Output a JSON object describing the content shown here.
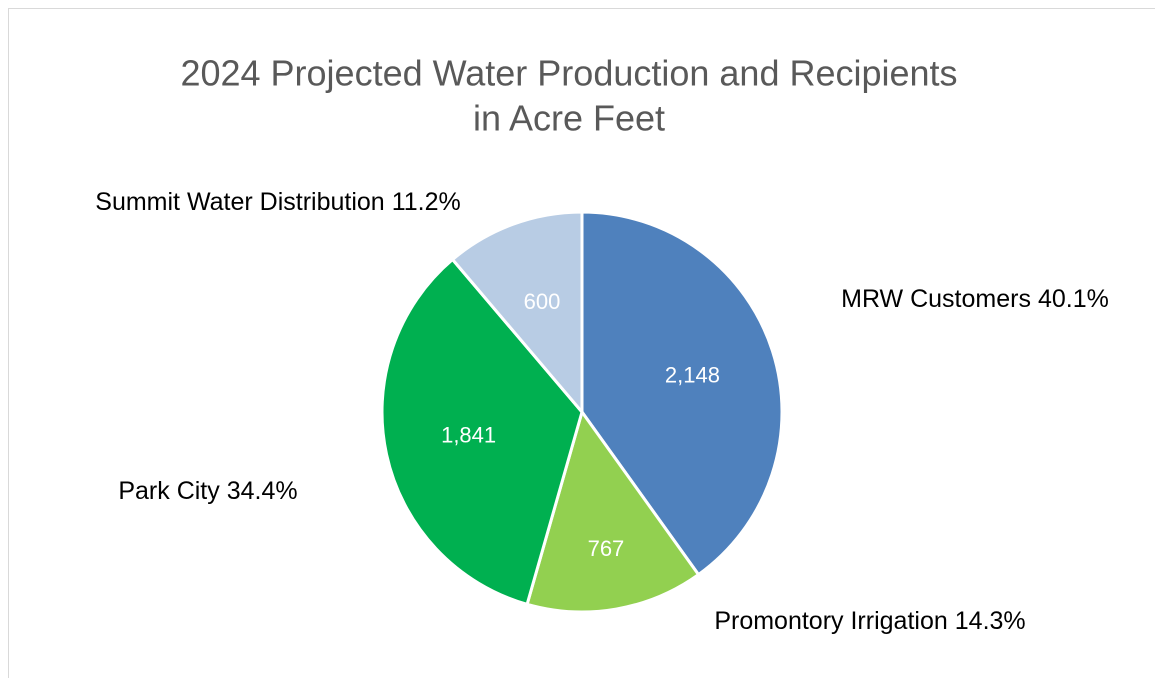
{
  "chart_data": {
    "type": "pie",
    "title": "2024 Projected Water Production and Recipients",
    "subtitle": "in Acre Feet",
    "categories": [
      "MRW Customers",
      "Promontory Irrigation",
      "Park City",
      "Summit Water Distribution"
    ],
    "values": [
      2148,
      767,
      1841,
      600
    ],
    "value_labels": [
      "2,148",
      "767",
      "1,841",
      "600"
    ],
    "percents": [
      40.1,
      14.3,
      34.4,
      11.2
    ],
    "percent_labels": [
      "40.1%",
      "14.3%",
      "34.4%",
      "11.2%"
    ],
    "colors": [
      "#4f81bd",
      "#92d050",
      "#00b050",
      "#b8cce4"
    ]
  }
}
